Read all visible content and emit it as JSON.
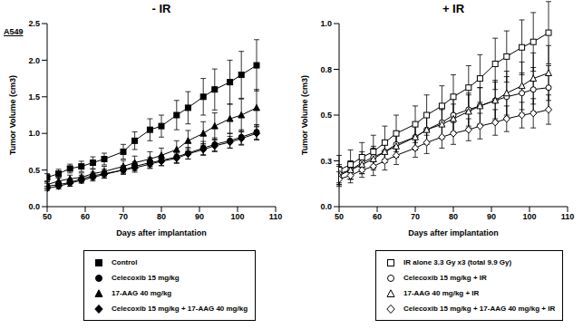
{
  "chart_data": [
    {
      "type": "line",
      "title": "- IR",
      "panel_label": "A549",
      "xlabel": "Days after implantation",
      "ylabel": "Tumor Volume (cm3)",
      "x": [
        50,
        53,
        56,
        59,
        62,
        65,
        70,
        73,
        77,
        80,
        84,
        87,
        91,
        94,
        98,
        101,
        105
      ],
      "xlim": [
        50,
        110
      ],
      "xticks": [
        50,
        60,
        70,
        80,
        90,
        100,
        110
      ],
      "ylim": [
        0,
        2.5
      ],
      "yticks": [
        {
          "value": 0,
          "label": "0.0"
        },
        0.5,
        {
          "value": 1,
          "label": "1.0"
        },
        1.5,
        {
          "value": 2,
          "label": "2.0"
        },
        2.5
      ],
      "grid": false,
      "legend": "bottom",
      "series": [
        {
          "name": "Control",
          "color": "#000000",
          "marker": "square",
          "values": [
            0.4,
            0.45,
            0.52,
            0.55,
            0.6,
            0.65,
            0.75,
            0.9,
            1.05,
            1.1,
            1.25,
            1.35,
            1.5,
            1.6,
            1.7,
            1.8,
            1.93
          ],
          "errors": [
            0.05,
            0.06,
            0.06,
            0.07,
            0.08,
            0.08,
            0.1,
            0.12,
            0.15,
            0.15,
            0.2,
            0.22,
            0.25,
            0.28,
            0.3,
            0.32,
            0.35
          ]
        },
        {
          "name": "Celecoxib 15 mg/kg",
          "color": "#000000",
          "marker": "circle",
          "values": [
            0.28,
            0.3,
            0.33,
            0.38,
            0.42,
            0.45,
            0.5,
            0.55,
            0.6,
            0.63,
            0.68,
            0.73,
            0.8,
            0.85,
            0.9,
            0.95,
            1.02
          ],
          "errors": [
            0.04,
            0.04,
            0.05,
            0.05,
            0.05,
            0.06,
            0.06,
            0.06,
            0.07,
            0.07,
            0.08,
            0.08,
            0.09,
            0.09,
            0.1,
            0.1,
            0.1
          ]
        },
        {
          "name": "17-AAG 40 mg/kg",
          "color": "#000000",
          "marker": "triangle",
          "values": [
            0.3,
            0.35,
            0.38,
            0.4,
            0.45,
            0.48,
            0.55,
            0.6,
            0.65,
            0.7,
            0.78,
            0.9,
            1.0,
            1.1,
            1.2,
            1.25,
            1.35
          ],
          "errors": [
            0.04,
            0.05,
            0.05,
            0.06,
            0.06,
            0.07,
            0.08,
            0.09,
            0.1,
            0.1,
            0.12,
            0.14,
            0.16,
            0.18,
            0.2,
            0.22,
            0.25
          ]
        },
        {
          "name": "Celecoxib 15 mg/kg + 17-AAG 40 mg/kg",
          "color": "#000000",
          "marker": "diamond",
          "values": [
            0.25,
            0.28,
            0.32,
            0.36,
            0.4,
            0.44,
            0.5,
            0.53,
            0.58,
            0.62,
            0.66,
            0.72,
            0.78,
            0.83,
            0.88,
            0.93,
            1.0
          ],
          "errors": [
            0.03,
            0.04,
            0.04,
            0.04,
            0.05,
            0.05,
            0.05,
            0.06,
            0.06,
            0.06,
            0.07,
            0.07,
            0.08,
            0.08,
            0.08,
            0.09,
            0.09
          ]
        }
      ]
    },
    {
      "type": "line",
      "title": "+ IR",
      "xlabel": "Days after implantation",
      "ylabel": "Tumor Volume (cm3)",
      "x": [
        50,
        53,
        56,
        59,
        62,
        65,
        70,
        73,
        77,
        80,
        84,
        87,
        91,
        94,
        98,
        101,
        105
      ],
      "xlim": [
        50,
        110
      ],
      "xticks": [
        50,
        60,
        70,
        80,
        90,
        100,
        110
      ],
      "ylim": [
        0,
        1
      ],
      "yticks": [
        {
          "value": 0,
          "label": "0.0"
        },
        {
          "value": 0.25,
          "label": "0.3"
        },
        0.5,
        {
          "value": 0.75,
          "label": "0.8"
        },
        {
          "value": 1,
          "label": "1.0"
        }
      ],
      "grid": false,
      "legend": "bottom",
      "series": [
        {
          "name": "IR alone 3.3 Gy x3 (total 9.9 Gy)",
          "color": "#000000",
          "marker": "open_square",
          "values": [
            0.2,
            0.23,
            0.27,
            0.3,
            0.35,
            0.4,
            0.45,
            0.5,
            0.55,
            0.6,
            0.65,
            0.7,
            0.78,
            0.82,
            0.87,
            0.9,
            0.95
          ],
          "errors": [
            0.08,
            0.08,
            0.08,
            0.09,
            0.09,
            0.1,
            0.1,
            0.11,
            0.11,
            0.12,
            0.12,
            0.13,
            0.14,
            0.14,
            0.15,
            0.16,
            0.17
          ]
        },
        {
          "name": "Celecoxib 15 mg/kg + IR",
          "color": "#000000",
          "marker": "open_circle",
          "values": [
            0.18,
            0.2,
            0.24,
            0.27,
            0.3,
            0.34,
            0.38,
            0.42,
            0.46,
            0.5,
            0.53,
            0.55,
            0.58,
            0.6,
            0.62,
            0.64,
            0.65
          ],
          "errors": [
            0.05,
            0.05,
            0.06,
            0.06,
            0.06,
            0.07,
            0.07,
            0.08,
            0.08,
            0.09,
            0.09,
            0.1,
            0.1,
            0.11,
            0.11,
            0.12,
            0.12
          ]
        },
        {
          "name": "17-AAG 40 mg/kg + IR",
          "color": "#000000",
          "marker": "open_triangle",
          "values": [
            0.17,
            0.2,
            0.23,
            0.26,
            0.3,
            0.33,
            0.38,
            0.42,
            0.45,
            0.48,
            0.52,
            0.55,
            0.58,
            0.62,
            0.66,
            0.7,
            0.73
          ],
          "errors": [
            0.05,
            0.05,
            0.05,
            0.06,
            0.06,
            0.06,
            0.07,
            0.07,
            0.08,
            0.08,
            0.09,
            0.1,
            0.11,
            0.12,
            0.13,
            0.14,
            0.15
          ]
        },
        {
          "name": "Celecoxib 15 mg/kg + 17-AAG 40 mg/kg + IR",
          "color": "#000000",
          "marker": "open_diamond",
          "values": [
            0.15,
            0.17,
            0.2,
            0.22,
            0.25,
            0.28,
            0.32,
            0.35,
            0.38,
            0.4,
            0.42,
            0.44,
            0.46,
            0.48,
            0.5,
            0.51,
            0.53
          ],
          "errors": [
            0.04,
            0.04,
            0.04,
            0.05,
            0.05,
            0.05,
            0.05,
            0.06,
            0.06,
            0.06,
            0.06,
            0.07,
            0.07,
            0.07,
            0.07,
            0.08,
            0.08
          ]
        }
      ]
    }
  ]
}
